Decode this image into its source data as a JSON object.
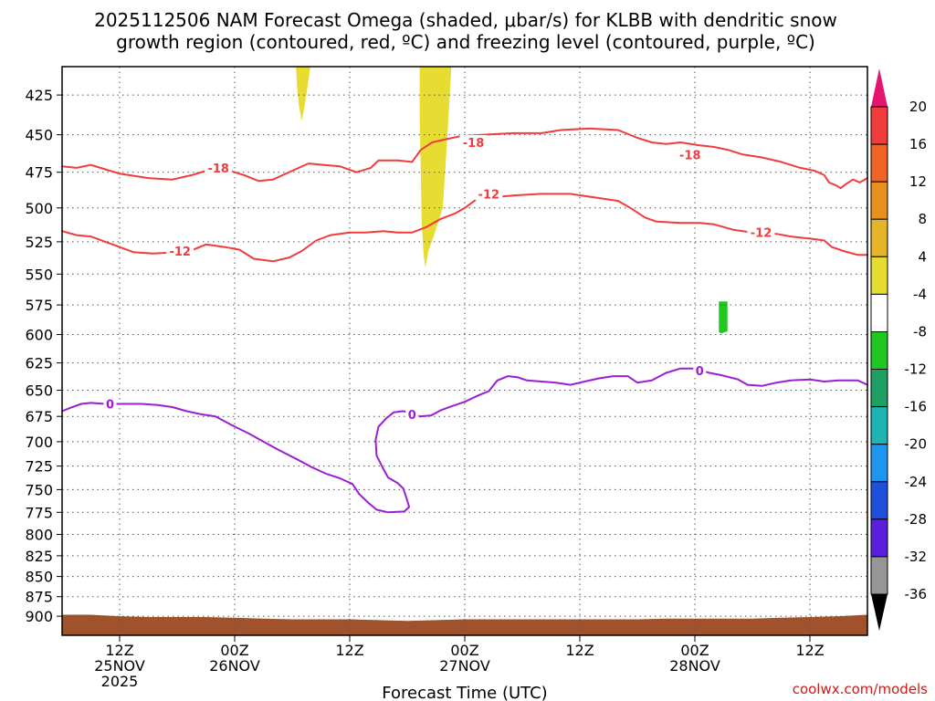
{
  "chart_data": {
    "type": "time-height contour",
    "title_lines": [
      "2025112506 NAM Forecast Omega (shaded, μbar/s) for KLBB with dendritic snow",
      "growth region (contoured, red, ºC) and freezing level (contoured, purple, ºC)"
    ],
    "xlabel": "Forecast Time (UTC)",
    "credit": "coolwx.com/models",
    "x_range_hours": [
      0,
      84
    ],
    "y_levels_hpa": [
      425,
      450,
      475,
      500,
      525,
      550,
      575,
      600,
      625,
      650,
      675,
      700,
      725,
      750,
      775,
      800,
      825,
      850,
      875,
      900
    ],
    "y_range_hpa": [
      408,
      925
    ],
    "x_ticks": [
      {
        "h": 6,
        "lines": [
          "12Z",
          "25NOV",
          "2025"
        ]
      },
      {
        "h": 18,
        "lines": [
          "00Z",
          "26NOV"
        ]
      },
      {
        "h": 30,
        "lines": [
          "12Z"
        ]
      },
      {
        "h": 42,
        "lines": [
          "00Z",
          "27NOV"
        ]
      },
      {
        "h": 54,
        "lines": [
          "12Z"
        ]
      },
      {
        "h": 66,
        "lines": [
          "00Z",
          "28NOV"
        ]
      },
      {
        "h": 78,
        "lines": [
          "12Z"
        ]
      }
    ],
    "colorbar": {
      "levels": [
        20,
        16,
        12,
        8,
        4,
        -4,
        -8,
        -12,
        -16,
        -20,
        -24,
        -28,
        -32,
        -36
      ],
      "colors": [
        "#f03c3c",
        "#f06428",
        "#e8901e",
        "#e6b428",
        "#e6dc32",
        "#ffffff",
        "#1ec81e",
        "#1ea064",
        "#1eb4b4",
        "#1e96f0",
        "#1e50dc",
        "#5a1edc",
        "#8c1edc",
        "#969696"
      ],
      "top_arrow_color": "#e6146e",
      "bottom_arrow_color": "#000000"
    },
    "series": [
      {
        "name": "-18 C isotherm",
        "color": "#f03c3c",
        "label": "-18",
        "label_points": [
          [
            16.3,
            472
          ],
          [
            42.9,
            455
          ],
          [
            65.5,
            463
          ]
        ],
        "points": [
          [
            0,
            471
          ],
          [
            1.5,
            472
          ],
          [
            3,
            470
          ],
          [
            4.5,
            473
          ],
          [
            6,
            476
          ],
          [
            9,
            479
          ],
          [
            11.5,
            480
          ],
          [
            13.5,
            477
          ],
          [
            15.5,
            473
          ],
          [
            17.5,
            474
          ],
          [
            19,
            477
          ],
          [
            20.5,
            481
          ],
          [
            22,
            480
          ],
          [
            24,
            474
          ],
          [
            25.7,
            469
          ],
          [
            27.3,
            470
          ],
          [
            29,
            471
          ],
          [
            30.7,
            475
          ],
          [
            32.2,
            472
          ],
          [
            33,
            467
          ],
          [
            35,
            467
          ],
          [
            36.5,
            468
          ],
          [
            37.4,
            460
          ],
          [
            38.6,
            455
          ],
          [
            40,
            453
          ],
          [
            41.5,
            451
          ],
          [
            44,
            450
          ],
          [
            47,
            449
          ],
          [
            50,
            449
          ],
          [
            52,
            447
          ],
          [
            55,
            446
          ],
          [
            58,
            447
          ],
          [
            60,
            452
          ],
          [
            61.5,
            455
          ],
          [
            63,
            456
          ],
          [
            64.5,
            455
          ],
          [
            66.5,
            457
          ],
          [
            68,
            458
          ],
          [
            69.5,
            460
          ],
          [
            71,
            463
          ],
          [
            73,
            465
          ],
          [
            75,
            468
          ],
          [
            77,
            472
          ],
          [
            78.5,
            474
          ],
          [
            79.5,
            477
          ],
          [
            80,
            482
          ],
          [
            80.7,
            484
          ],
          [
            81.2,
            486
          ],
          [
            81.8,
            483
          ],
          [
            82.5,
            480
          ],
          [
            83.2,
            482
          ],
          [
            84,
            479
          ]
        ]
      },
      {
        "name": "-12 C isotherm",
        "color": "#f03c3c",
        "label": "-12",
        "label_points": [
          [
            12.3,
            532
          ],
          [
            44.5,
            490
          ],
          [
            72.9,
            518
          ]
        ],
        "points": [
          [
            0,
            517
          ],
          [
            1.5,
            520
          ],
          [
            3,
            521
          ],
          [
            4.5,
            525
          ],
          [
            6,
            529
          ],
          [
            7.5,
            533
          ],
          [
            9.5,
            534
          ],
          [
            12,
            533
          ],
          [
            13.7,
            531
          ],
          [
            15,
            527
          ],
          [
            17,
            529
          ],
          [
            18.5,
            531
          ],
          [
            20,
            538
          ],
          [
            22,
            540
          ],
          [
            23.7,
            537
          ],
          [
            25,
            532
          ],
          [
            26.5,
            524
          ],
          [
            28,
            520
          ],
          [
            30,
            518
          ],
          [
            31.7,
            518
          ],
          [
            33.5,
            517
          ],
          [
            35,
            518
          ],
          [
            36.5,
            518
          ],
          [
            38,
            514
          ],
          [
            39.5,
            508
          ],
          [
            41,
            504
          ],
          [
            42,
            500
          ],
          [
            43.2,
            494
          ],
          [
            45.5,
            492
          ],
          [
            47.5,
            491
          ],
          [
            50,
            490
          ],
          [
            53,
            490
          ],
          [
            56,
            493
          ],
          [
            58,
            495
          ],
          [
            59.5,
            501
          ],
          [
            60.8,
            507
          ],
          [
            62,
            510
          ],
          [
            64.5,
            511
          ],
          [
            66.5,
            511
          ],
          [
            68,
            512
          ],
          [
            70,
            516
          ],
          [
            72,
            518
          ],
          [
            74.5,
            519
          ],
          [
            76,
            521
          ],
          [
            78.5,
            523
          ],
          [
            79.5,
            524
          ],
          [
            80.3,
            529
          ],
          [
            81.5,
            532
          ],
          [
            83,
            535
          ],
          [
            84,
            535
          ]
        ]
      },
      {
        "name": "0 C freezing level",
        "color": "#9b1ed2",
        "label": "0",
        "label_points": [
          [
            5,
            663
          ],
          [
            36.5,
            673
          ],
          [
            66.5,
            632
          ]
        ],
        "points": [
          [
            0,
            670
          ],
          [
            0.8,
            667
          ],
          [
            2,
            663
          ],
          [
            3,
            662
          ],
          [
            4.5,
            663
          ],
          [
            6.5,
            663
          ],
          [
            8.3,
            663
          ],
          [
            10,
            664
          ],
          [
            11.5,
            666
          ],
          [
            13,
            670
          ],
          [
            14.5,
            673
          ],
          [
            16,
            675
          ],
          [
            18,
            685
          ],
          [
            19.5,
            692
          ],
          [
            21,
            700
          ],
          [
            22.5,
            708
          ],
          [
            24.5,
            718
          ],
          [
            26,
            726
          ],
          [
            27.5,
            733
          ],
          [
            29,
            738
          ],
          [
            30.3,
            744
          ],
          [
            31,
            755
          ],
          [
            32,
            765
          ],
          [
            32.8,
            772
          ],
          [
            34,
            775
          ],
          [
            35.7,
            774
          ],
          [
            36.2,
            769
          ],
          [
            36,
            762
          ],
          [
            35.6,
            749
          ],
          [
            35,
            743
          ],
          [
            34,
            737
          ],
          [
            33.4,
            726
          ],
          [
            32.8,
            714
          ],
          [
            32.7,
            698
          ],
          [
            33,
            685
          ],
          [
            33.8,
            677
          ],
          [
            34.6,
            671
          ],
          [
            35.5,
            670
          ],
          [
            36.5,
            671
          ],
          [
            37.3,
            675
          ],
          [
            38.5,
            674
          ],
          [
            39.5,
            669
          ],
          [
            40.7,
            665
          ],
          [
            42,
            661
          ],
          [
            43.4,
            655
          ],
          [
            44.5,
            651
          ],
          [
            45.4,
            641
          ],
          [
            46.5,
            637
          ],
          [
            47.5,
            638
          ],
          [
            48.5,
            641
          ],
          [
            50,
            642
          ],
          [
            51.5,
            643
          ],
          [
            53,
            645
          ],
          [
            54.5,
            642
          ],
          [
            56,
            639
          ],
          [
            57.5,
            637
          ],
          [
            59,
            637
          ],
          [
            60,
            643
          ],
          [
            61.5,
            641
          ],
          [
            63,
            634
          ],
          [
            64.5,
            630
          ],
          [
            66,
            630
          ],
          [
            67.5,
            634
          ],
          [
            68.7,
            636
          ],
          [
            70.5,
            640
          ],
          [
            71.5,
            645
          ],
          [
            73,
            646
          ],
          [
            74.5,
            643
          ],
          [
            76,
            641
          ],
          [
            78,
            640
          ],
          [
            79.5,
            642
          ],
          [
            81,
            641
          ],
          [
            83,
            641
          ],
          [
            84,
            645
          ]
        ]
      }
    ],
    "shaded_regions": [
      {
        "name": "omega 4 to 8 upper",
        "color": "#e6dc32",
        "points": [
          [
            24.4,
            408
          ],
          [
            25.9,
            408
          ],
          [
            25.6,
            420
          ],
          [
            25.3,
            432
          ],
          [
            25,
            441
          ],
          [
            24.7,
            432
          ],
          [
            24.5,
            420
          ]
        ]
      },
      {
        "name": "omega 4 to 8 main",
        "color": "#e6dc32",
        "points": [
          [
            37.3,
            408
          ],
          [
            40.6,
            408
          ],
          [
            40.3,
            440
          ],
          [
            40,
            470
          ],
          [
            39.7,
            500
          ],
          [
            38.8,
            520
          ],
          [
            38.2,
            532
          ],
          [
            37.9,
            545
          ],
          [
            37.7,
            535
          ],
          [
            37.5,
            510
          ],
          [
            37.4,
            470
          ],
          [
            37.3,
            440
          ]
        ]
      },
      {
        "name": "omega -8 to -4",
        "color": "#1ec81e",
        "points": [
          [
            68.5,
            572
          ],
          [
            69.4,
            572
          ],
          [
            69.4,
            597
          ],
          [
            68.8,
            599
          ],
          [
            68.5,
            598
          ]
        ]
      }
    ],
    "terrain": {
      "color": "#a0522d",
      "points": [
        [
          0,
          898
        ],
        [
          3,
          898
        ],
        [
          6,
          900
        ],
        [
          9,
          901
        ],
        [
          12,
          901
        ],
        [
          15,
          901
        ],
        [
          18,
          902
        ],
        [
          21,
          903
        ],
        [
          24,
          904
        ],
        [
          27,
          904
        ],
        [
          30,
          904
        ],
        [
          33,
          905
        ],
        [
          36,
          906
        ],
        [
          39,
          905
        ],
        [
          42,
          904
        ],
        [
          45,
          904
        ],
        [
          48,
          904
        ],
        [
          51,
          904
        ],
        [
          54,
          904
        ],
        [
          57,
          904
        ],
        [
          60,
          904
        ],
        [
          63,
          903
        ],
        [
          66,
          903
        ],
        [
          69,
          903
        ],
        [
          72,
          903
        ],
        [
          75,
          902
        ],
        [
          78,
          901
        ],
        [
          81,
          900
        ],
        [
          84,
          898
        ]
      ]
    }
  }
}
